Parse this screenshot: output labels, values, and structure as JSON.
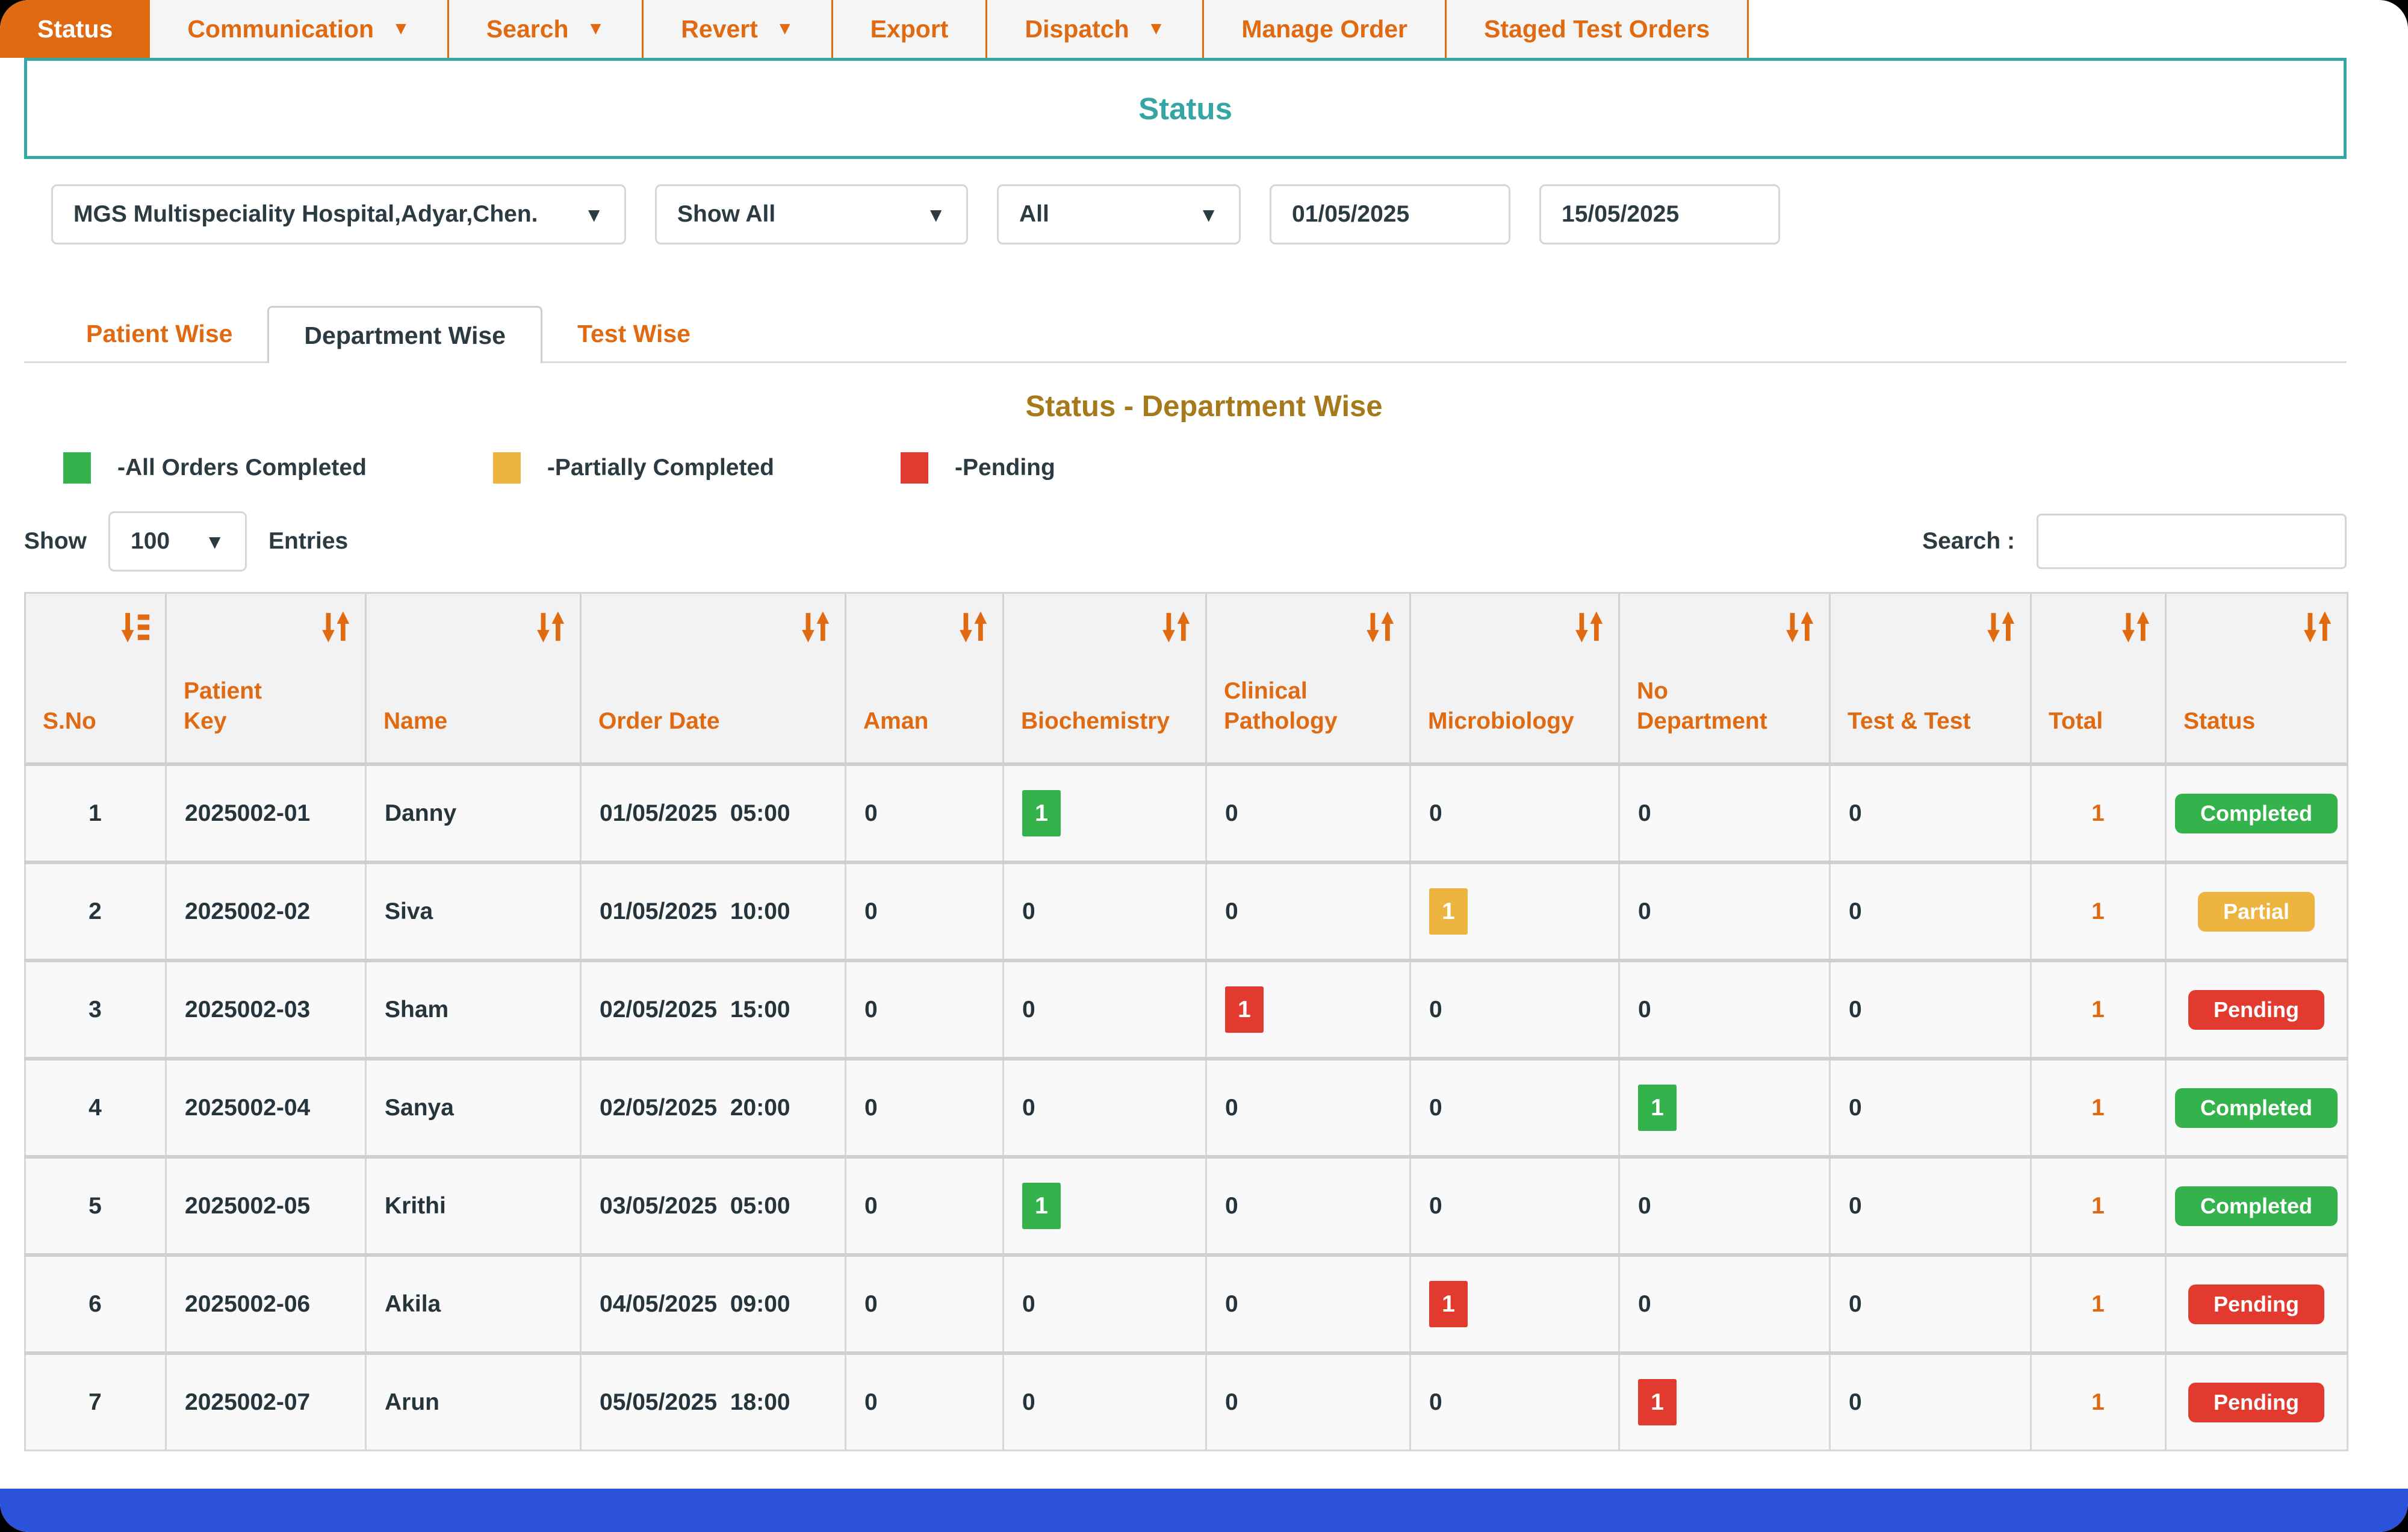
{
  "nav": {
    "tabs": [
      {
        "label": "Status",
        "caret": false,
        "active": true
      },
      {
        "label": "Communication",
        "caret": true,
        "active": false
      },
      {
        "label": "Search",
        "caret": true,
        "active": false
      },
      {
        "label": "Revert",
        "caret": true,
        "active": false
      },
      {
        "label": "Export",
        "caret": false,
        "active": false
      },
      {
        "label": "Dispatch",
        "caret": true,
        "active": false
      },
      {
        "label": "Manage Order",
        "caret": false,
        "active": false
      },
      {
        "label": "Staged Test Orders",
        "caret": false,
        "active": false
      }
    ]
  },
  "page_title": "Status",
  "filters": {
    "hospital": "MGS Multispeciality Hospital,Adyar,Chen.",
    "show_all": "Show All",
    "department": "All",
    "from_date": "01/05/2025",
    "to_date": "15/05/2025"
  },
  "view_tabs": [
    {
      "label": "Patient Wise",
      "active": false
    },
    {
      "label": "Department Wise",
      "active": true
    },
    {
      "label": "Test Wise",
      "active": false
    }
  ],
  "section_title": "Status - Department Wise",
  "legend": [
    {
      "label": "-All Orders Completed",
      "color": "#34B24C"
    },
    {
      "label": "-Partially Completed",
      "color": "#EDB440"
    },
    {
      "label": "-Pending",
      "color": "#E23A2E"
    }
  ],
  "controls": {
    "show_label": "Show",
    "entries_value": "100",
    "entries_label": "Entries",
    "search_label": "Search :"
  },
  "colors": {
    "accent_orange": "#E06A12",
    "teal": "#35A6A3",
    "gold_title": "#A6791B",
    "green": "#34B24C",
    "amber": "#EDB440",
    "red": "#E23A2E",
    "footer_bar": "#2B52D9"
  },
  "table": {
    "columns": [
      {
        "label": "S.No",
        "icon": "sort-amount-icon"
      },
      {
        "label": "Patient Key",
        "icon": "sort-updown-icon"
      },
      {
        "label": "Name",
        "icon": "sort-updown-icon"
      },
      {
        "label": "Order Date",
        "icon": "sort-updown-icon"
      },
      {
        "label": "Aman",
        "icon": "sort-updown-icon"
      },
      {
        "label": "Biochemistry",
        "icon": "sort-updown-icon"
      },
      {
        "label": "Clinical Pathology",
        "icon": "sort-updown-icon"
      },
      {
        "label": "Microbiology",
        "icon": "sort-updown-icon"
      },
      {
        "label": "No Department",
        "icon": "sort-updown-icon"
      },
      {
        "label": "Test & Test",
        "icon": "sort-updown-icon"
      },
      {
        "label": "Total",
        "icon": "sort-updown-icon"
      },
      {
        "label": "Status",
        "icon": "sort-updown-icon"
      }
    ],
    "rows": [
      {
        "sno": "1",
        "patient_key": "2025002-01",
        "name": "Danny",
        "order_date": "01/05/2025  05:00",
        "departments": [
          {
            "value": "0"
          },
          {
            "value": "1",
            "highlight": "green"
          },
          {
            "value": "0"
          },
          {
            "value": "0"
          },
          {
            "value": "0"
          },
          {
            "value": "0"
          }
        ],
        "total": "1",
        "status": {
          "label": "Completed",
          "variant": "green"
        }
      },
      {
        "sno": "2",
        "patient_key": "2025002-02",
        "name": "Siva",
        "order_date": "01/05/2025  10:00",
        "departments": [
          {
            "value": "0"
          },
          {
            "value": "0"
          },
          {
            "value": "0"
          },
          {
            "value": "1",
            "highlight": "amber"
          },
          {
            "value": "0"
          },
          {
            "value": "0"
          }
        ],
        "total": "1",
        "status": {
          "label": "Partial",
          "variant": "amber"
        }
      },
      {
        "sno": "3",
        "patient_key": "2025002-03",
        "name": "Sham",
        "order_date": "02/05/2025  15:00",
        "departments": [
          {
            "value": "0"
          },
          {
            "value": "0"
          },
          {
            "value": "1",
            "highlight": "red"
          },
          {
            "value": "0"
          },
          {
            "value": "0"
          },
          {
            "value": "0"
          }
        ],
        "total": "1",
        "status": {
          "label": "Pending",
          "variant": "red"
        }
      },
      {
        "sno": "4",
        "patient_key": "2025002-04",
        "name": "Sanya",
        "order_date": "02/05/2025  20:00",
        "departments": [
          {
            "value": "0"
          },
          {
            "value": "0"
          },
          {
            "value": "0"
          },
          {
            "value": "0"
          },
          {
            "value": "1",
            "highlight": "green"
          },
          {
            "value": "0"
          }
        ],
        "total": "1",
        "status": {
          "label": "Completed",
          "variant": "green"
        }
      },
      {
        "sno": "5",
        "patient_key": "2025002-05",
        "name": "Krithi",
        "order_date": "03/05/2025  05:00",
        "departments": [
          {
            "value": "0"
          },
          {
            "value": "1",
            "highlight": "green"
          },
          {
            "value": "0"
          },
          {
            "value": "0"
          },
          {
            "value": "0"
          },
          {
            "value": "0"
          }
        ],
        "total": "1",
        "status": {
          "label": "Completed",
          "variant": "green"
        }
      },
      {
        "sno": "6",
        "patient_key": "2025002-06",
        "name": "Akila",
        "order_date": "04/05/2025  09:00",
        "departments": [
          {
            "value": "0"
          },
          {
            "value": "0"
          },
          {
            "value": "0"
          },
          {
            "value": "1",
            "highlight": "red"
          },
          {
            "value": "0"
          },
          {
            "value": "0"
          }
        ],
        "total": "1",
        "status": {
          "label": "Pending",
          "variant": "red"
        }
      },
      {
        "sno": "7",
        "patient_key": "2025002-07",
        "name": "Arun",
        "order_date": "05/05/2025  18:00",
        "departments": [
          {
            "value": "0"
          },
          {
            "value": "0"
          },
          {
            "value": "0"
          },
          {
            "value": "0"
          },
          {
            "value": "1",
            "highlight": "red"
          },
          {
            "value": "0"
          }
        ],
        "total": "1",
        "status": {
          "label": "Pending",
          "variant": "red"
        }
      }
    ]
  }
}
